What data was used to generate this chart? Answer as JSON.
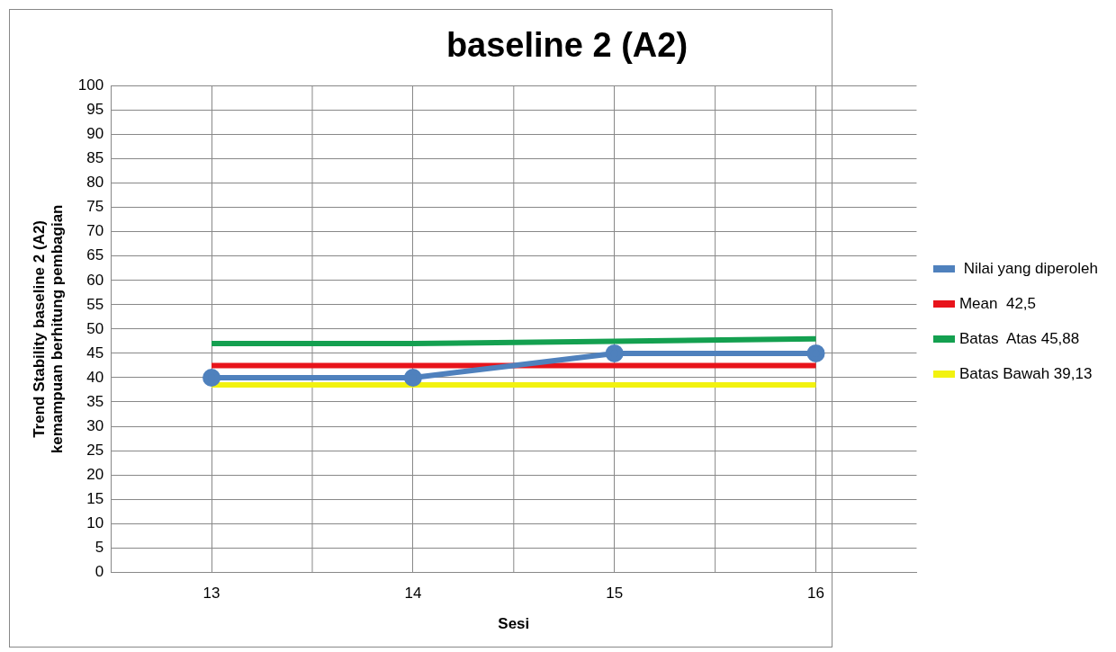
{
  "chart_data": {
    "type": "line",
    "title": "baseline 2 (A2)",
    "xlabel": "Sesi",
    "ylabel": "Trend Stability baseline 2 (A2)\nkemampuan berhitung pembagian",
    "categories": [
      "13",
      "14",
      "15",
      "16"
    ],
    "series": [
      {
        "name": " Nilai yang diperoleh",
        "color": "#4f81bd",
        "values": [
          40,
          40,
          45,
          45
        ],
        "marker": "circle"
      },
      {
        "name": "Mean  42,5",
        "color": "#e8141b",
        "values": [
          42.5,
          42.5,
          42.5,
          42.5
        ],
        "marker": "none"
      },
      {
        "name": "Batas  Atas 45,88",
        "color": "#14a050",
        "values": [
          47,
          47,
          47.5,
          48
        ],
        "marker": "none"
      },
      {
        "name": "Batas Bawah 39,13",
        "color": "#f2f20f",
        "values": [
          38.5,
          38.5,
          38.5,
          38.5
        ],
        "marker": "none"
      }
    ],
    "ylim": [
      0,
      100
    ],
    "yticks": [
      0,
      5,
      10,
      15,
      20,
      25,
      30,
      35,
      40,
      45,
      50,
      55,
      60,
      65,
      70,
      75,
      80,
      85,
      90,
      95,
      100
    ],
    "grid": true,
    "legend": "right"
  }
}
